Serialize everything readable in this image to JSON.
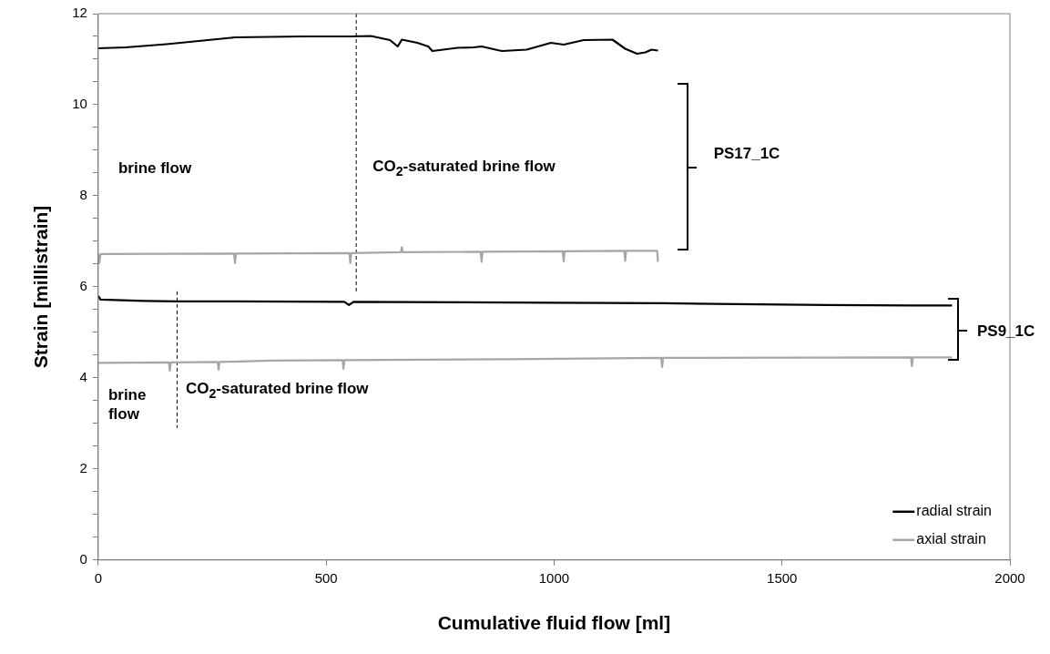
{
  "chart_data": {
    "type": "line",
    "xlabel": "Cumulative fluid flow [ml]",
    "ylabel": "Strain [millistrain]",
    "xlim": [
      0,
      2000
    ],
    "xticks": [
      0,
      500,
      1000,
      1500,
      2000
    ],
    "ylim": [
      0,
      12
    ],
    "yticks": [
      0,
      {
        "value": 0.5,
        "label": null
      },
      2,
      {
        "value": 1,
        "label": null
      },
      {
        "value": 1.5,
        "label": null
      },
      {
        "value": 2.5,
        "label": null
      },
      {
        "value": 3,
        "label": null
      },
      {
        "value": 3.5,
        "label": null
      },
      4,
      {
        "value": 4.5,
        "label": null
      },
      {
        "value": 5,
        "label": null
      },
      {
        "value": 5.5,
        "label": null
      },
      6,
      {
        "value": 6.5,
        "label": null
      },
      {
        "value": 7,
        "label": null
      },
      {
        "value": 7.5,
        "label": null
      },
      8,
      {
        "value": 8.5,
        "label": null
      },
      {
        "value": 9,
        "label": null
      },
      {
        "value": 9.5,
        "label": null
      },
      10,
      {
        "value": 10.5,
        "label": null
      },
      {
        "value": 11,
        "label": null
      },
      {
        "value": 11.5,
        "label": null
      },
      12
    ],
    "grid": false,
    "legend": "bottom right",
    "marker": "none",
    "line_style": "solid",
    "series": [
      {
        "name": "radial strain",
        "color": "#000000",
        "x": [
          0,
          60,
          150,
          301,
          450,
          553,
          598,
          640,
          657,
          666,
          700,
          724,
          733,
          788,
          823,
          841,
          876,
          886,
          940,
          993,
          1021,
          1065,
          1128,
          1156,
          1182,
          1200,
          1214,
          1228
        ],
        "values": [
          11.24,
          11.26,
          11.33,
          11.48,
          11.5,
          11.5,
          11.51,
          11.42,
          11.28,
          11.43,
          11.36,
          11.28,
          11.18,
          11.25,
          11.26,
          11.28,
          11.2,
          11.18,
          11.21,
          11.36,
          11.32,
          11.42,
          11.43,
          11.23,
          11.12,
          11.15,
          11.21,
          11.19
        ]
      },
      {
        "name": "axial strain",
        "color": "#a6a6a6",
        "x": [
          0,
          2,
          5,
          298,
          300,
          302,
          551,
          553,
          555,
          664,
          666,
          668,
          839,
          841,
          843,
          1019,
          1021,
          1023,
          1154,
          1156,
          1158,
          1226,
          1228
        ],
        "values": [
          6.72,
          6.52,
          6.72,
          6.73,
          6.52,
          6.73,
          6.74,
          6.52,
          6.74,
          6.76,
          6.87,
          6.76,
          6.77,
          6.55,
          6.77,
          6.78,
          6.56,
          6.78,
          6.79,
          6.57,
          6.79,
          6.79,
          6.55
        ]
      },
      {
        "color": "#000000",
        "x": [
          0,
          5,
          100,
          173,
          300,
          540,
          550,
          560,
          800,
          1000,
          1237,
          1400,
          1600,
          1785,
          1873
        ],
        "values": [
          5.8,
          5.72,
          5.69,
          5.68,
          5.68,
          5.67,
          5.6,
          5.67,
          5.66,
          5.65,
          5.64,
          5.62,
          5.6,
          5.59,
          5.59
        ]
      },
      {
        "color": "#a6a6a6",
        "x": [
          0,
          155,
          157,
          159,
          262,
          264,
          266,
          380,
          536,
          538,
          540,
          900,
          1235,
          1237,
          1239,
          1783,
          1785,
          1787,
          1873
        ],
        "values": [
          4.33,
          4.34,
          4.16,
          4.34,
          4.35,
          4.18,
          4.35,
          4.38,
          4.39,
          4.2,
          4.39,
          4.41,
          4.44,
          4.24,
          4.44,
          4.45,
          4.26,
          4.45,
          4.45
        ]
      },
      {
        "color": "#000000",
        "line_style": "dashed",
        "x": [
          566,
          566
        ],
        "values": [
          12,
          5.9
        ]
      },
      {
        "color": "#000000",
        "line_style": "dashed",
        "x": [
          173,
          173
        ],
        "values": [
          5.9,
          2.9
        ]
      }
    ],
    "annotations": [
      "brine flow",
      "CO$_{2}$-saturated brine flow",
      "PS17_1C",
      "brine flow",
      "CO$_{2}$-saturated brine flow",
      "PS9_1C"
    ]
  }
}
